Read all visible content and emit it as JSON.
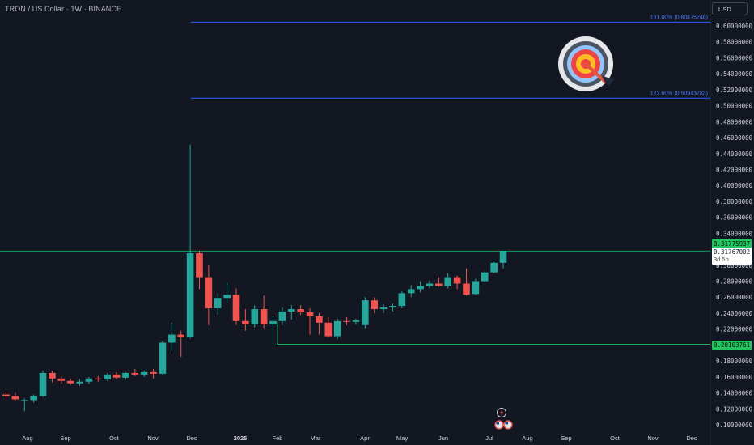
{
  "header": {
    "title": "TRON / US Dollar · 1W · BINANCE",
    "currency_button": "USD"
  },
  "colors": {
    "background": "#131722",
    "up": "#26a69a",
    "down": "#ef5350",
    "fib": "#2962ff",
    "level": "#22c55e",
    "axis_text": "#d1d4dc"
  },
  "icons": [
    "target-bullseye-icon",
    "flash-icon",
    "us-flag-icon"
  ],
  "chart_data": {
    "type": "candlestick",
    "title": "TRON / US Dollar · 1W · BINANCE",
    "y_axis": {
      "ylim": [
        0.095,
        0.63
      ],
      "ticks": [
        "0.60000000",
        "0.58000000",
        "0.56000000",
        "0.54000000",
        "0.52000000",
        "0.50000000",
        "0.48000000",
        "0.46000000",
        "0.44000000",
        "0.42000000",
        "0.40000000",
        "0.38000000",
        "0.36000000",
        "0.34000000",
        "0.30000000",
        "0.28000000",
        "0.26000000",
        "0.24000000",
        "0.22000000",
        "0.18000000",
        "0.16000000",
        "0.14000000",
        "0.12000000",
        "0.10000000"
      ]
    },
    "x_axis": {
      "ticks": [
        "Aug",
        "Sep",
        "Oct",
        "Nov",
        "Dec",
        "2025",
        "Feb",
        "Mar",
        "Apr",
        "May",
        "Jun",
        "Jul",
        "Aug",
        "Sep",
        "Oct",
        "Nov",
        "Dec"
      ]
    },
    "current_price": "0.31767002",
    "countdown": "3d 5h",
    "levels": [
      {
        "label": "0.31775937",
        "value": 0.3178,
        "kind": "horizontal-full"
      },
      {
        "label": "0.20103761",
        "value": 0.201,
        "kind": "horizontal-from-feb"
      }
    ],
    "fib_levels": [
      {
        "label": "161.80% (0.60475246)",
        "value": 0.60475
      },
      {
        "label": "123.60% (0.50943783)",
        "value": 0.50944
      }
    ],
    "candles": [
      {
        "o": 0.138,
        "h": 0.141,
        "l": 0.132,
        "c": 0.136
      },
      {
        "o": 0.136,
        "h": 0.14,
        "l": 0.13,
        "c": 0.132
      },
      {
        "o": 0.13,
        "h": 0.133,
        "l": 0.117,
        "c": 0.131
      },
      {
        "o": 0.131,
        "h": 0.138,
        "l": 0.128,
        "c": 0.136
      },
      {
        "o": 0.136,
        "h": 0.168,
        "l": 0.135,
        "c": 0.165
      },
      {
        "o": 0.165,
        "h": 0.168,
        "l": 0.153,
        "c": 0.158
      },
      {
        "o": 0.158,
        "h": 0.161,
        "l": 0.151,
        "c": 0.155
      },
      {
        "o": 0.155,
        "h": 0.158,
        "l": 0.15,
        "c": 0.152
      },
      {
        "o": 0.152,
        "h": 0.157,
        "l": 0.149,
        "c": 0.154
      },
      {
        "o": 0.154,
        "h": 0.16,
        "l": 0.151,
        "c": 0.158
      },
      {
        "o": 0.158,
        "h": 0.161,
        "l": 0.154,
        "c": 0.157
      },
      {
        "o": 0.157,
        "h": 0.165,
        "l": 0.155,
        "c": 0.163
      },
      {
        "o": 0.163,
        "h": 0.166,
        "l": 0.157,
        "c": 0.159
      },
      {
        "o": 0.159,
        "h": 0.166,
        "l": 0.157,
        "c": 0.165
      },
      {
        "o": 0.165,
        "h": 0.17,
        "l": 0.161,
        "c": 0.163
      },
      {
        "o": 0.163,
        "h": 0.168,
        "l": 0.16,
        "c": 0.166
      },
      {
        "o": 0.166,
        "h": 0.17,
        "l": 0.158,
        "c": 0.164
      },
      {
        "o": 0.164,
        "h": 0.205,
        "l": 0.162,
        "c": 0.203
      },
      {
        "o": 0.203,
        "h": 0.228,
        "l": 0.192,
        "c": 0.213
      },
      {
        "o": 0.213,
        "h": 0.218,
        "l": 0.185,
        "c": 0.21
      },
      {
        "o": 0.21,
        "h": 0.451,
        "l": 0.208,
        "c": 0.315
      },
      {
        "o": 0.315,
        "h": 0.318,
        "l": 0.27,
        "c": 0.285
      },
      {
        "o": 0.285,
        "h": 0.3,
        "l": 0.225,
        "c": 0.246
      },
      {
        "o": 0.246,
        "h": 0.265,
        "l": 0.238,
        "c": 0.259
      },
      {
        "o": 0.259,
        "h": 0.278,
        "l": 0.252,
        "c": 0.263
      },
      {
        "o": 0.263,
        "h": 0.271,
        "l": 0.225,
        "c": 0.23
      },
      {
        "o": 0.23,
        "h": 0.245,
        "l": 0.218,
        "c": 0.226
      },
      {
        "o": 0.226,
        "h": 0.25,
        "l": 0.222,
        "c": 0.245
      },
      {
        "o": 0.245,
        "h": 0.262,
        "l": 0.22,
        "c": 0.226
      },
      {
        "o": 0.226,
        "h": 0.236,
        "l": 0.201,
        "c": 0.23
      },
      {
        "o": 0.23,
        "h": 0.247,
        "l": 0.225,
        "c": 0.242
      },
      {
        "o": 0.242,
        "h": 0.25,
        "l": 0.232,
        "c": 0.245
      },
      {
        "o": 0.245,
        "h": 0.25,
        "l": 0.238,
        "c": 0.241
      },
      {
        "o": 0.241,
        "h": 0.246,
        "l": 0.213,
        "c": 0.236
      },
      {
        "o": 0.236,
        "h": 0.24,
        "l": 0.213,
        "c": 0.228
      },
      {
        "o": 0.228,
        "h": 0.235,
        "l": 0.21,
        "c": 0.211
      },
      {
        "o": 0.211,
        "h": 0.233,
        "l": 0.208,
        "c": 0.23
      },
      {
        "o": 0.23,
        "h": 0.235,
        "l": 0.225,
        "c": 0.229
      },
      {
        "o": 0.229,
        "h": 0.233,
        "l": 0.226,
        "c": 0.231
      },
      {
        "o": 0.225,
        "h": 0.26,
        "l": 0.22,
        "c": 0.256
      },
      {
        "o": 0.256,
        "h": 0.26,
        "l": 0.24,
        "c": 0.245
      },
      {
        "o": 0.245,
        "h": 0.251,
        "l": 0.24,
        "c": 0.247
      },
      {
        "o": 0.247,
        "h": 0.252,
        "l": 0.242,
        "c": 0.249
      },
      {
        "o": 0.249,
        "h": 0.267,
        "l": 0.246,
        "c": 0.265
      },
      {
        "o": 0.265,
        "h": 0.275,
        "l": 0.26,
        "c": 0.27
      },
      {
        "o": 0.27,
        "h": 0.28,
        "l": 0.266,
        "c": 0.274
      },
      {
        "o": 0.274,
        "h": 0.281,
        "l": 0.271,
        "c": 0.277
      },
      {
        "o": 0.277,
        "h": 0.285,
        "l": 0.273,
        "c": 0.274
      },
      {
        "o": 0.274,
        "h": 0.29,
        "l": 0.271,
        "c": 0.285
      },
      {
        "o": 0.285,
        "h": 0.287,
        "l": 0.27,
        "c": 0.277
      },
      {
        "o": 0.277,
        "h": 0.296,
        "l": 0.262,
        "c": 0.263
      },
      {
        "o": 0.264,
        "h": 0.283,
        "l": 0.263,
        "c": 0.28
      },
      {
        "o": 0.28,
        "h": 0.292,
        "l": 0.279,
        "c": 0.291
      },
      {
        "o": 0.291,
        "h": 0.304,
        "l": 0.29,
        "c": 0.303
      },
      {
        "o": 0.303,
        "h": 0.318,
        "l": 0.296,
        "c": 0.3177
      }
    ]
  }
}
